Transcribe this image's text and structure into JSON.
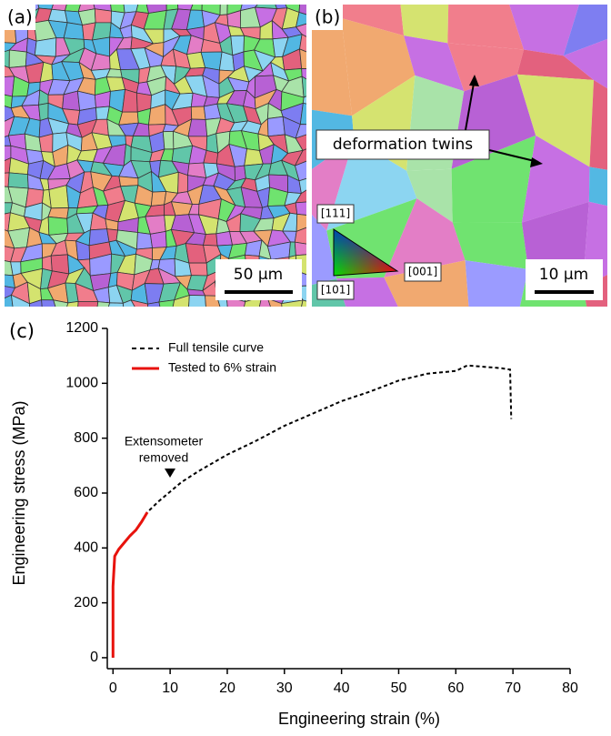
{
  "images": {
    "a": {
      "label": "(a)",
      "scale_bar": "50 µm"
    },
    "b": {
      "label": "(b)",
      "scale_bar": "10 µm",
      "annotation": "deformation twins",
      "ipf_labels": [
        "[111]",
        "[001]",
        "[101]"
      ]
    }
  },
  "chart_data": {
    "type": "line",
    "panel_label": "(c)",
    "x_label": "Engineering strain (%)",
    "y_label": "Engineering stress (MPa)",
    "annotation": [
      "Extensometer",
      "removed"
    ],
    "xlim": [
      -1,
      80
    ],
    "ylim": [
      -40,
      1200
    ],
    "xticks": [
      0,
      10,
      20,
      30,
      40,
      50,
      60,
      70,
      80
    ],
    "yticks": [
      0,
      200,
      400,
      600,
      800,
      1000,
      1200
    ],
    "legend": "top-left",
    "series": [
      {
        "name": "Full tensile curve",
        "color": "#000000",
        "dash": true,
        "x": [
          0,
          0,
          0.3,
          1,
          2,
          4,
          6,
          8,
          10,
          12,
          15,
          20,
          25,
          30,
          35,
          40,
          45,
          50,
          55,
          60,
          62,
          65,
          68,
          69.5,
          69.7
        ],
        "values": [
          0,
          260,
          370,
          395,
          420,
          465,
          530,
          570,
          605,
          640,
          680,
          740,
          790,
          845,
          890,
          935,
          970,
          1010,
          1035,
          1045,
          1065,
          1060,
          1055,
          1050,
          870
        ]
      },
      {
        "name": "Tested to 6% strain",
        "color": "#e8120c",
        "dash": false,
        "x": [
          0,
          0,
          0.3,
          1,
          2,
          3,
          4,
          5,
          6
        ],
        "values": [
          0,
          260,
          370,
          395,
          420,
          445,
          465,
          495,
          530
        ]
      }
    ]
  }
}
